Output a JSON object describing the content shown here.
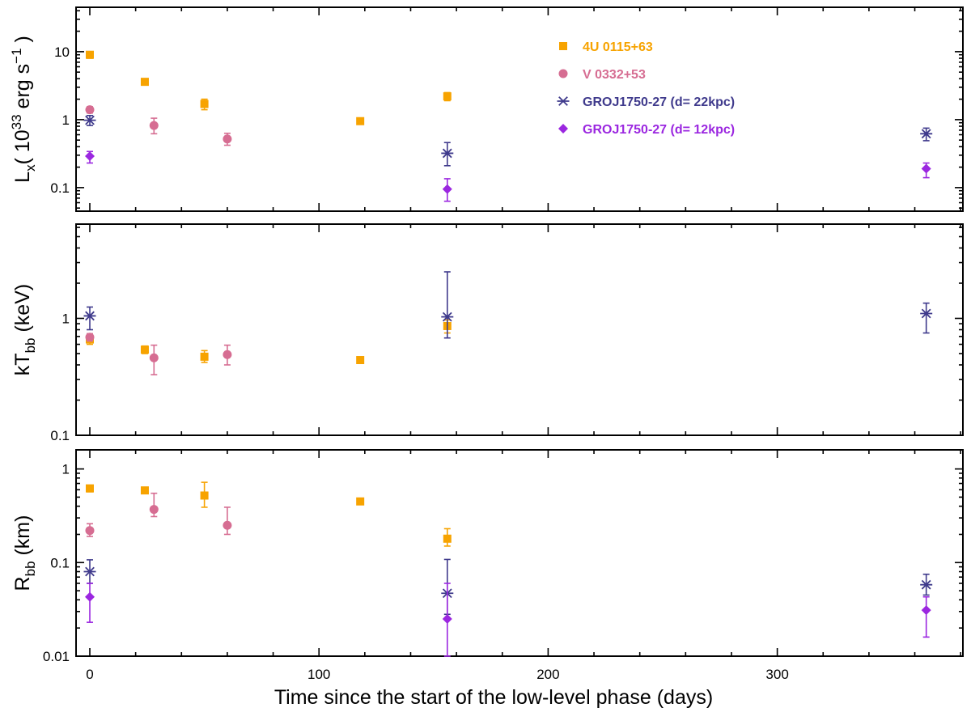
{
  "chart_data": {
    "type": "scatter",
    "xlabel": "Time since the start of the low-level phase (days)",
    "xlim": [
      -6,
      381
    ],
    "xticks": [
      0,
      100,
      200,
      300
    ],
    "legend_position": "top-right of first panel",
    "colors": {
      "4U 0115+63": "#f7a300",
      "V 0332+53": "#d66d92",
      "GROJ1750-27 (d= 22kpc)": "#3f3a8c",
      "GROJ1750-27 (d= 12kpc)": "#9b27e0"
    },
    "series": [
      {
        "name": "4U 0115+63",
        "marker": "square",
        "color": "#f7a300"
      },
      {
        "name": "V 0332+53",
        "marker": "circle",
        "color": "#d66d92"
      },
      {
        "name": "GROJ1750-27 (d= 22kpc)",
        "marker": "asterisk",
        "color": "#3f3a8c"
      },
      {
        "name": "GROJ1750-27 (d= 12kpc)",
        "marker": "diamond",
        "color": "#9b27e0"
      }
    ],
    "panels": [
      {
        "id": "lx",
        "ylabel_main": "L",
        "ylabel_sub": "x",
        "ylabel_rest": "( 10",
        "ylabel_exp": "33",
        "ylabel_unit": " erg s",
        "ylabel_exp2": "−1",
        "ylabel_close": " )",
        "yscale": "log",
        "ylim": [
          0.045,
          45
        ],
        "yticks": [
          0.1,
          1,
          10
        ],
        "yticklabels": [
          "0.1",
          "1",
          "10"
        ],
        "data": {
          "4U 0115+63": [
            {
              "x": 0,
              "y": 9.0,
              "lo": 8.0,
              "hi": 10.0
            },
            {
              "x": 24,
              "y": 3.6,
              "lo": 3.4,
              "hi": 3.8
            },
            {
              "x": 50,
              "y": 1.7,
              "lo": 1.4,
              "hi": 2.0
            },
            {
              "x": 118,
              "y": 0.95,
              "lo": 0.92,
              "hi": 0.98
            },
            {
              "x": 156,
              "y": 2.2,
              "lo": 1.9,
              "hi": 2.5
            }
          ],
          "V 0332+53": [
            {
              "x": 0,
              "y": 1.4,
              "lo": 1.25,
              "hi": 1.55
            },
            {
              "x": 28,
              "y": 0.82,
              "lo": 0.62,
              "hi": 1.05
            },
            {
              "x": 60,
              "y": 0.52,
              "lo": 0.42,
              "hi": 0.63
            }
          ],
          "GROJ1750-27 (d= 22kpc)": [
            {
              "x": 0,
              "y": 0.98,
              "lo": 0.82,
              "hi": 1.15
            },
            {
              "x": 156,
              "y": 0.32,
              "lo": 0.21,
              "hi": 0.46
            },
            {
              "x": 365,
              "y": 0.62,
              "lo": 0.49,
              "hi": 0.75
            }
          ],
          "GROJ1750-27 (d= 12kpc)": [
            {
              "x": 0,
              "y": 0.29,
              "lo": 0.23,
              "hi": 0.34
            },
            {
              "x": 156,
              "y": 0.095,
              "lo": 0.063,
              "hi": 0.135
            },
            {
              "x": 365,
              "y": 0.19,
              "lo": 0.14,
              "hi": 0.23
            }
          ]
        }
      },
      {
        "id": "kt",
        "ylabel_main": "kT",
        "ylabel_sub": "bb",
        "ylabel_rest": " (keV)",
        "yscale": "log",
        "ylim": [
          0.1,
          6.4
        ],
        "yticks": [
          0.1,
          1
        ],
        "yticklabels": [
          "0.1",
          "1"
        ],
        "data": {
          "4U 0115+63": [
            {
              "x": 0,
              "y": 0.66,
              "lo": 0.6,
              "hi": 0.72
            },
            {
              "x": 24,
              "y": 0.54,
              "lo": 0.5,
              "hi": 0.58
            },
            {
              "x": 50,
              "y": 0.47,
              "lo": 0.42,
              "hi": 0.53
            },
            {
              "x": 118,
              "y": 0.44,
              "lo": 0.43,
              "hi": 0.45
            },
            {
              "x": 156,
              "y": 0.86,
              "lo": 0.75,
              "hi": 0.97
            }
          ],
          "V 0332+53": [
            {
              "x": 0,
              "y": 0.69,
              "lo": 0.64,
              "hi": 0.74
            },
            {
              "x": 28,
              "y": 0.46,
              "lo": 0.33,
              "hi": 0.59
            },
            {
              "x": 60,
              "y": 0.49,
              "lo": 0.4,
              "hi": 0.59
            }
          ],
          "GROJ1750-27 (d= 22kpc)": [
            {
              "x": 0,
              "y": 1.05,
              "lo": 0.8,
              "hi": 1.25
            },
            {
              "x": 156,
              "y": 1.03,
              "lo": 0.68,
              "hi": 2.5
            },
            {
              "x": 365,
              "y": 1.1,
              "lo": 0.75,
              "hi": 1.35
            }
          ],
          "GROJ1750-27 (d= 12kpc)": []
        }
      },
      {
        "id": "rbb",
        "ylabel_main": "R",
        "ylabel_sub": "bb",
        "ylabel_rest": " (km)",
        "yscale": "log",
        "ylim": [
          0.01,
          1.6
        ],
        "yticks": [
          0.01,
          0.1,
          1
        ],
        "yticklabels": [
          "0.01",
          "0.1",
          "1"
        ],
        "data": {
          "4U 0115+63": [
            {
              "x": 0,
              "y": 0.62,
              "lo": 0.57,
              "hi": 0.67
            },
            {
              "x": 24,
              "y": 0.59,
              "lo": 0.56,
              "hi": 0.62
            },
            {
              "x": 50,
              "y": 0.52,
              "lo": 0.39,
              "hi": 0.72
            },
            {
              "x": 118,
              "y": 0.45,
              "lo": 0.44,
              "hi": 0.46
            },
            {
              "x": 156,
              "y": 0.18,
              "lo": 0.15,
              "hi": 0.23
            }
          ],
          "V 0332+53": [
            {
              "x": 0,
              "y": 0.22,
              "lo": 0.19,
              "hi": 0.26
            },
            {
              "x": 28,
              "y": 0.37,
              "lo": 0.31,
              "hi": 0.55
            },
            {
              "x": 60,
              "y": 0.25,
              "lo": 0.2,
              "hi": 0.39
            }
          ],
          "GROJ1750-27 (d= 22kpc)": [
            {
              "x": 0,
              "y": 0.08,
              "lo": 0.06,
              "hi": 0.107
            },
            {
              "x": 156,
              "y": 0.047,
              "lo": 0.028,
              "hi": 0.108
            },
            {
              "x": 365,
              "y": 0.058,
              "lo": 0.045,
              "hi": 0.075
            }
          ],
          "GROJ1750-27 (d= 12kpc)": [
            {
              "x": 0,
              "y": 0.043,
              "lo": 0.023,
              "hi": 0.06
            },
            {
              "x": 156,
              "y": 0.025,
              "lo": 0.01,
              "hi": 0.06
            },
            {
              "x": 365,
              "y": 0.031,
              "lo": 0.016,
              "hi": 0.043
            }
          ]
        }
      }
    ]
  }
}
